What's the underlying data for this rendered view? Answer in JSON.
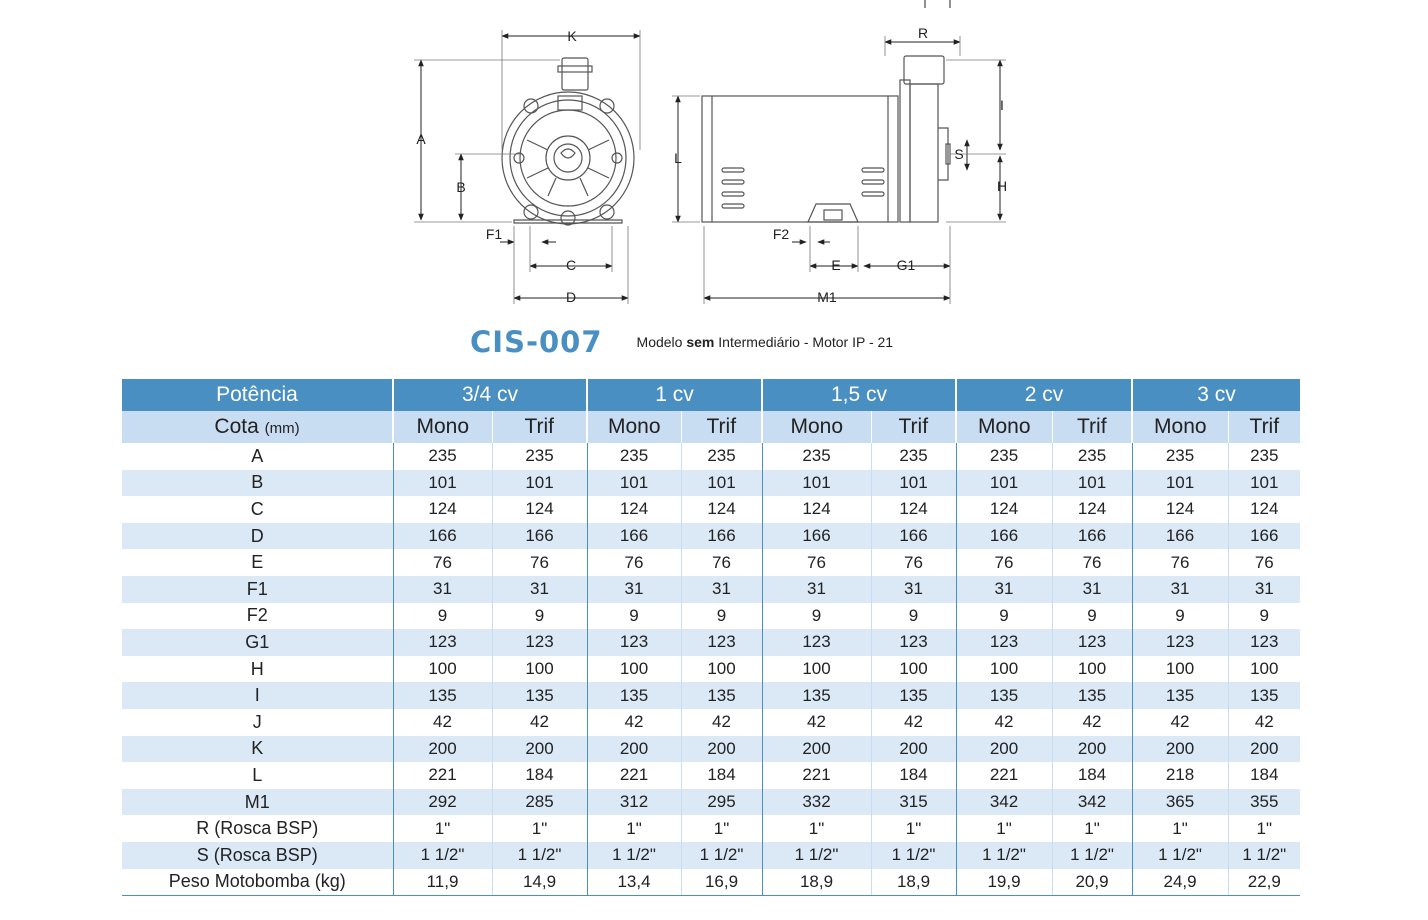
{
  "drawing": {
    "labels": {
      "K": "K",
      "R": "R",
      "A": "A",
      "B": "B",
      "L": "L",
      "I": "I",
      "S": "S",
      "H": "H",
      "F1": "F1",
      "F2": "F2",
      "C": "C",
      "D": "D",
      "E": "E",
      "G1": "G1",
      "M1": "M1"
    }
  },
  "title": {
    "code": "CIS-007",
    "desc_before": "Modelo ",
    "desc_bold": "sem",
    "desc_after": " Intermediário - Motor IP - 21"
  },
  "table": {
    "potencia_label": "Potência",
    "cota_label": "Cota",
    "cota_unit": "(mm)",
    "groups": [
      "3/4 cv",
      "1 cv",
      "1,5 cv",
      "2 cv",
      "3 cv"
    ],
    "subheaders": [
      "Mono",
      "Trif",
      "Mono",
      "Trif",
      "Mono",
      "Trif",
      "Mono",
      "Trif",
      "Mono",
      "Trif"
    ],
    "rows": [
      {
        "label": "A",
        "values": [
          "235",
          "235",
          "235",
          "235",
          "235",
          "235",
          "235",
          "235",
          "235",
          "235"
        ]
      },
      {
        "label": "B",
        "values": [
          "101",
          "101",
          "101",
          "101",
          "101",
          "101",
          "101",
          "101",
          "101",
          "101"
        ]
      },
      {
        "label": "C",
        "values": [
          "124",
          "124",
          "124",
          "124",
          "124",
          "124",
          "124",
          "124",
          "124",
          "124"
        ]
      },
      {
        "label": "D",
        "values": [
          "166",
          "166",
          "166",
          "166",
          "166",
          "166",
          "166",
          "166",
          "166",
          "166"
        ]
      },
      {
        "label": "E",
        "values": [
          "76",
          "76",
          "76",
          "76",
          "76",
          "76",
          "76",
          "76",
          "76",
          "76"
        ]
      },
      {
        "label": "F1",
        "values": [
          "31",
          "31",
          "31",
          "31",
          "31",
          "31",
          "31",
          "31",
          "31",
          "31"
        ]
      },
      {
        "label": "F2",
        "values": [
          "9",
          "9",
          "9",
          "9",
          "9",
          "9",
          "9",
          "9",
          "9",
          "9"
        ]
      },
      {
        "label": "G1",
        "values": [
          "123",
          "123",
          "123",
          "123",
          "123",
          "123",
          "123",
          "123",
          "123",
          "123"
        ]
      },
      {
        "label": "H",
        "values": [
          "100",
          "100",
          "100",
          "100",
          "100",
          "100",
          "100",
          "100",
          "100",
          "100"
        ]
      },
      {
        "label": "I",
        "values": [
          "135",
          "135",
          "135",
          "135",
          "135",
          "135",
          "135",
          "135",
          "135",
          "135"
        ]
      },
      {
        "label": "J",
        "values": [
          "42",
          "42",
          "42",
          "42",
          "42",
          "42",
          "42",
          "42",
          "42",
          "42"
        ]
      },
      {
        "label": "K",
        "values": [
          "200",
          "200",
          "200",
          "200",
          "200",
          "200",
          "200",
          "200",
          "200",
          "200"
        ]
      },
      {
        "label": "L",
        "values": [
          "221",
          "184",
          "221",
          "184",
          "221",
          "184",
          "221",
          "184",
          "218",
          "184"
        ]
      },
      {
        "label": "M1",
        "values": [
          "292",
          "285",
          "312",
          "295",
          "332",
          "315",
          "342",
          "342",
          "365",
          "355"
        ]
      },
      {
        "label": "R (Rosca BSP)",
        "values": [
          "1\"",
          "1\"",
          "1\"",
          "1\"",
          "1\"",
          "1\"",
          "1\"",
          "1\"",
          "1\"",
          "1\""
        ]
      },
      {
        "label": "S (Rosca BSP)",
        "values": [
          "1 1/2\"",
          "1 1/2\"",
          "1 1/2\"",
          "1 1/2\"",
          "1 1/2\"",
          "1 1/2\"",
          "1 1/2\"",
          "1 1/2\"",
          "1 1/2\"",
          "1 1/2\""
        ]
      },
      {
        "label": "Peso Motobomba (kg)",
        "values": [
          "11,9",
          "14,9",
          "13,4",
          "16,9",
          "18,9",
          "18,9",
          "19,9",
          "20,9",
          "24,9",
          "22,9"
        ]
      }
    ]
  }
}
